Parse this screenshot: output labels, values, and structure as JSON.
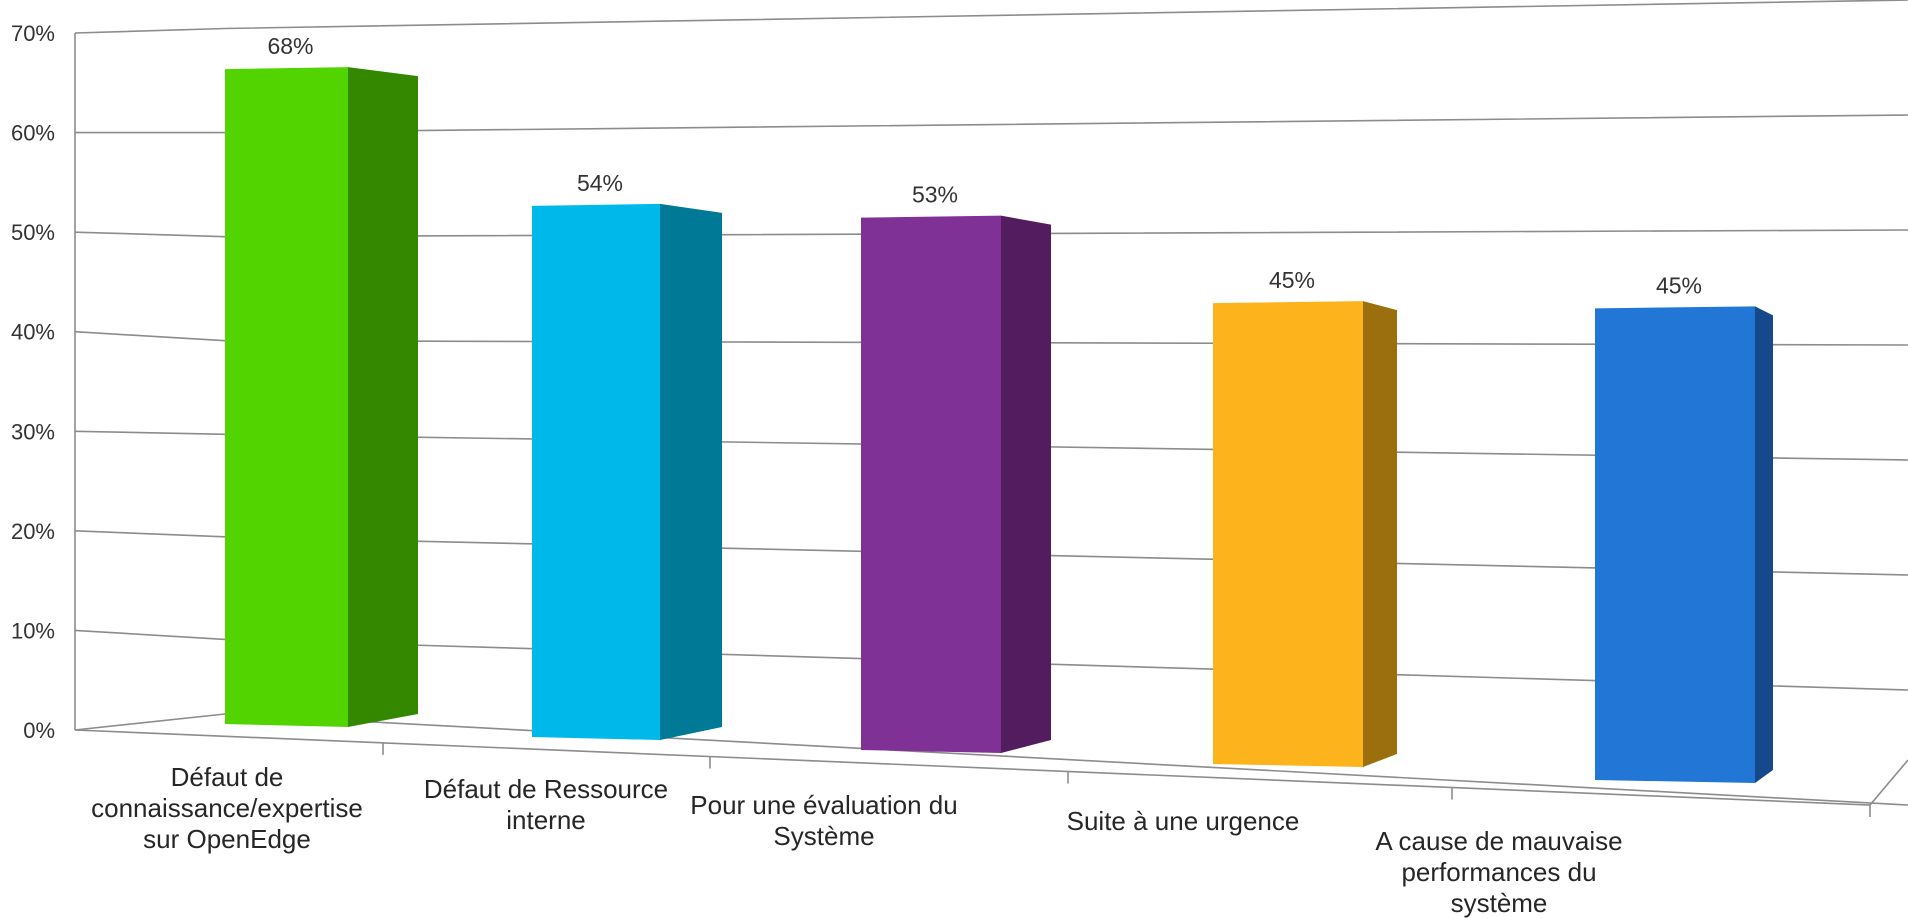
{
  "chart_data": {
    "type": "bar",
    "style": "3d-perspective",
    "categories": [
      [
        "Défaut de",
        "connaissance/expertise",
        "sur OpenEdge"
      ],
      [
        "Défaut de Ressource",
        "interne"
      ],
      [
        "Pour une évaluation du",
        "Système"
      ],
      [
        "Suite à une urgence"
      ],
      [
        "A cause de mauvaise",
        "performances du",
        "système"
      ]
    ],
    "values": [
      68,
      54,
      53,
      45,
      45
    ],
    "data_labels": [
      "68%",
      "54%",
      "53%",
      "45%",
      "45%"
    ],
    "y_ticks": [
      "0%",
      "10%",
      "20%",
      "30%",
      "40%",
      "50%",
      "60%",
      "70%"
    ],
    "ylim": [
      0,
      70
    ],
    "grid": true,
    "legend": "none",
    "colors": {
      "front": [
        "#51d400",
        "#00b9eb",
        "#7f3196",
        "#fcb31c",
        "#2276d6"
      ],
      "side": [
        "#338800",
        "#007997",
        "#521c5f",
        "#9b6f0d",
        "#16488c"
      ]
    }
  }
}
